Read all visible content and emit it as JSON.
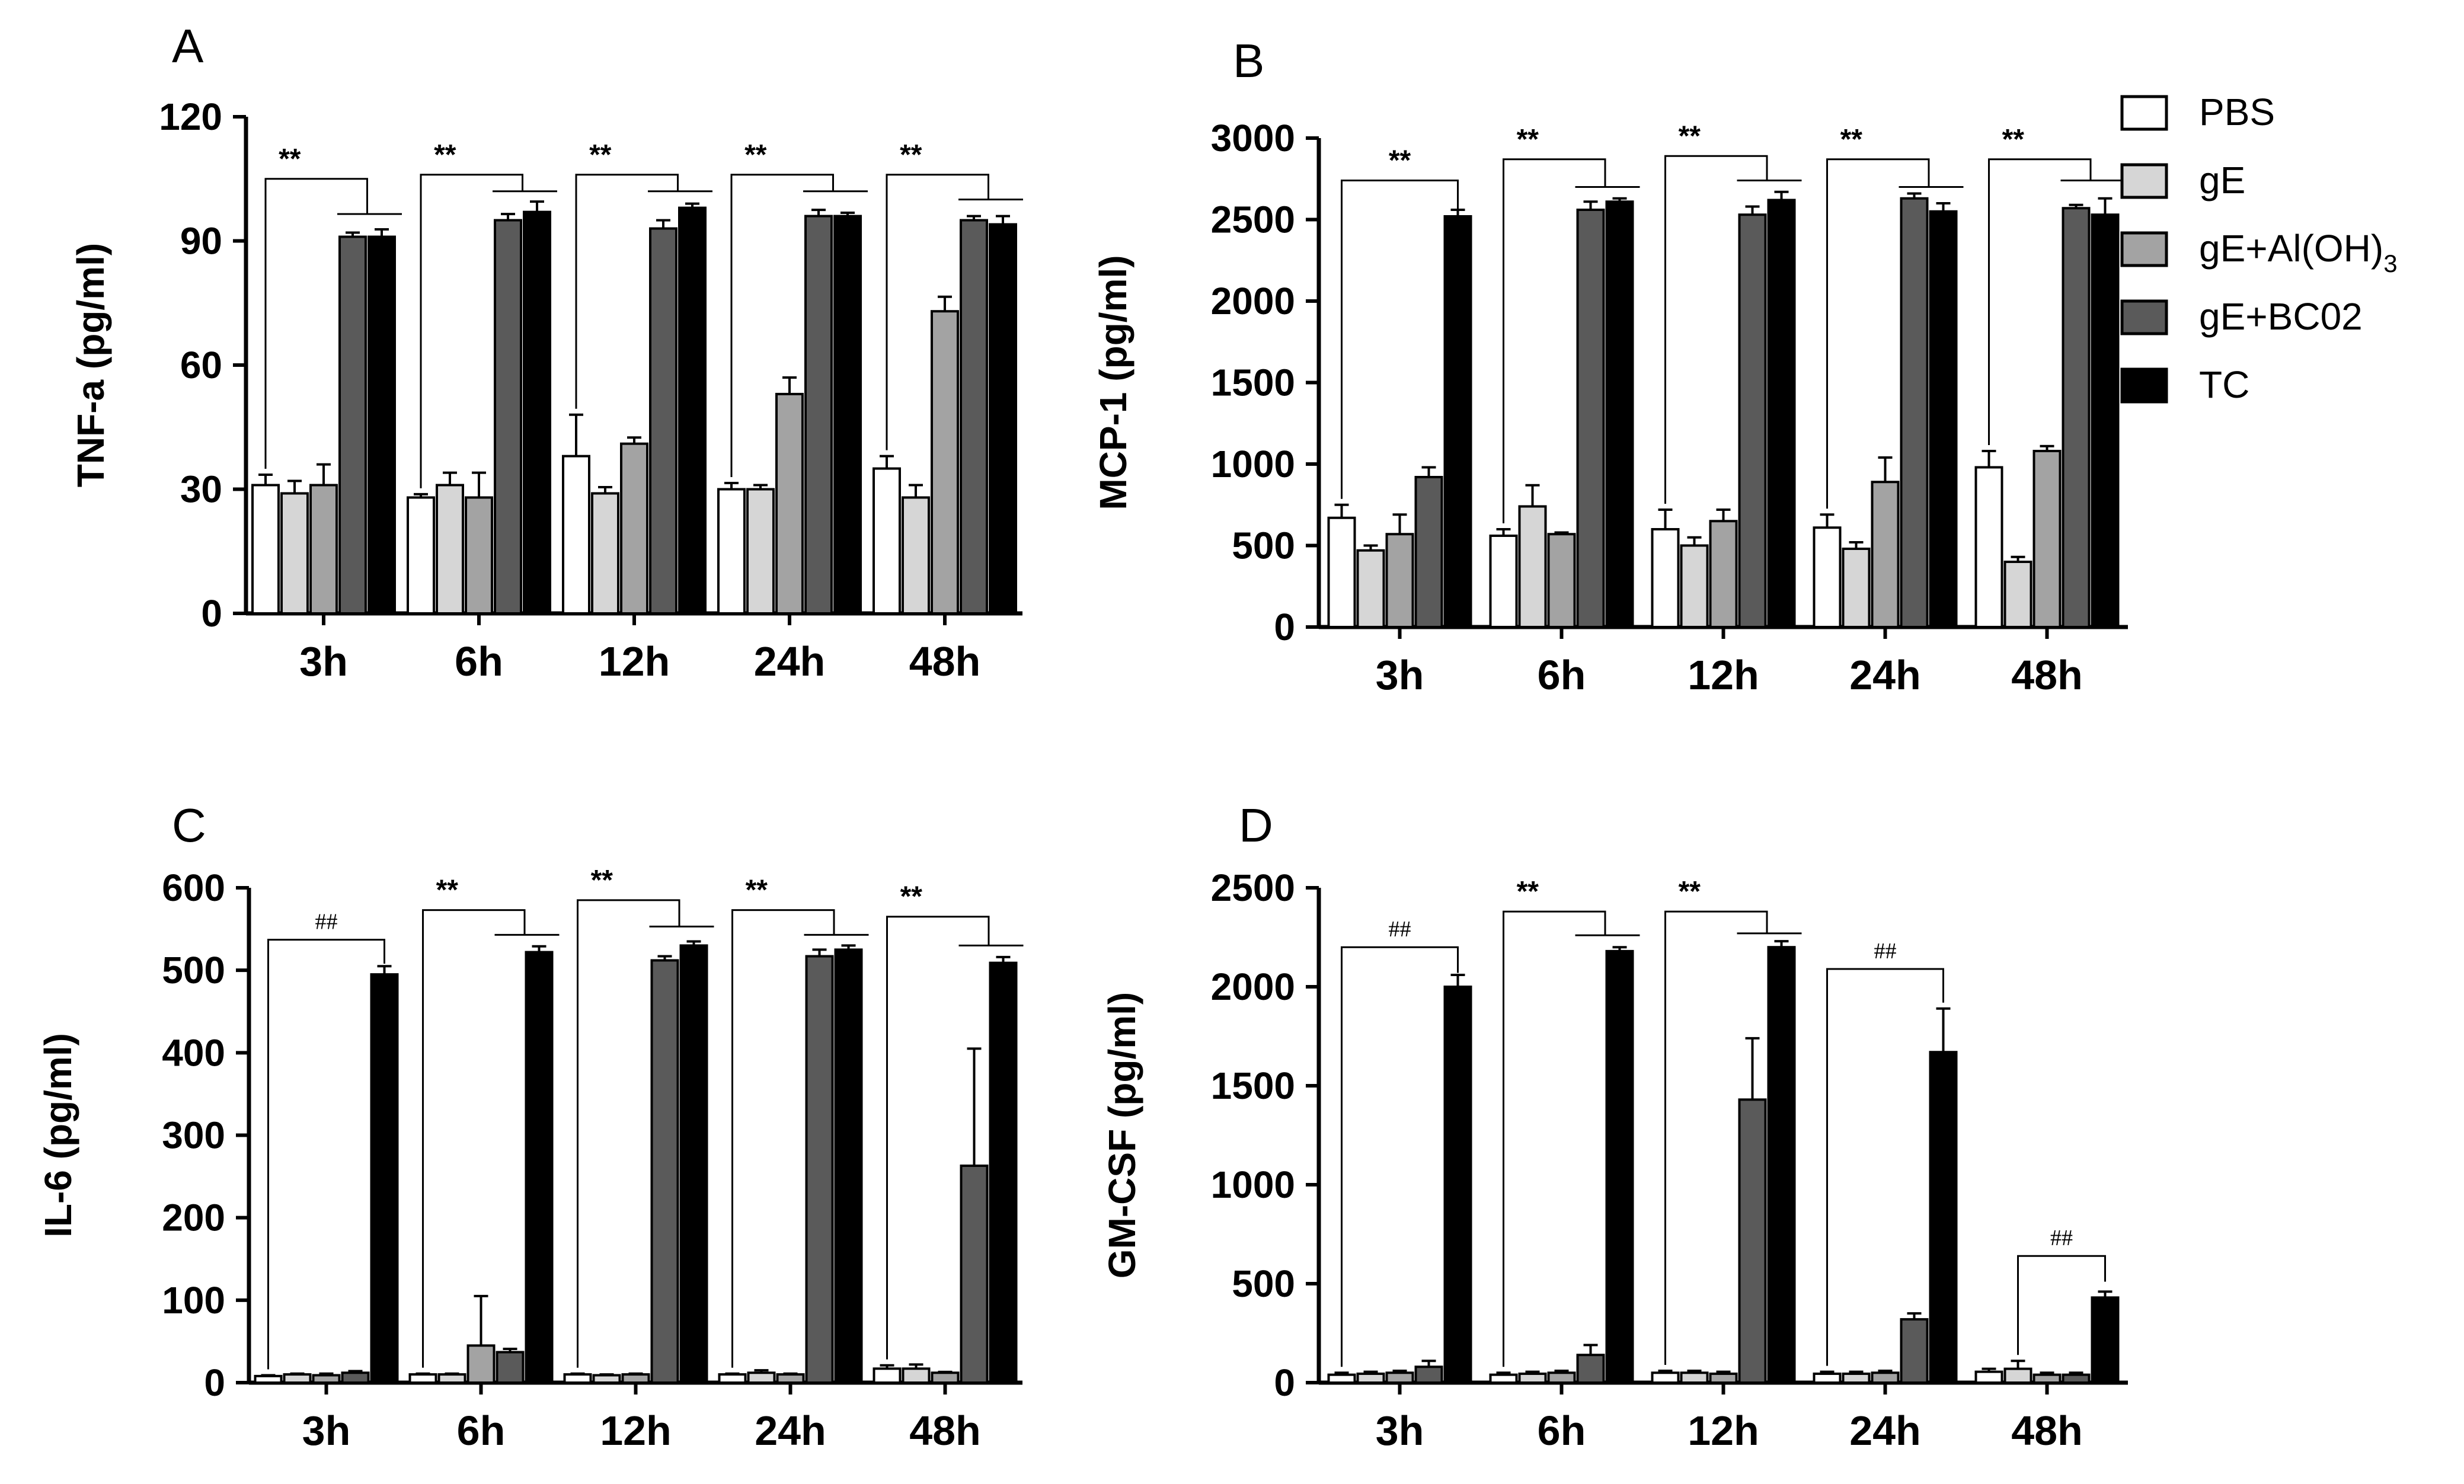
{
  "legend": {
    "items": [
      {
        "key": "PBS",
        "label": "PBS",
        "color": "#ffffff"
      },
      {
        "key": "gE",
        "label": "gE",
        "color": "#d6d6d6"
      },
      {
        "key": "gE_AlOH3",
        "label": "gE+Al(OH)",
        "sub": "3",
        "color": "#a3a3a3"
      },
      {
        "key": "gE_BC02",
        "label": "gE+BC02",
        "color": "#5a5a5a"
      },
      {
        "key": "TC",
        "label": "TC",
        "color": "#000000"
      }
    ]
  },
  "chart_data": [
    {
      "id": "A",
      "letter": "A",
      "type": "bar",
      "ylabel": "TNF-a (pg/ml)",
      "ylim": [
        0,
        120
      ],
      "yticks": [
        0,
        30,
        60,
        90,
        120
      ],
      "yticklabels": [
        "0",
        "30",
        "60",
        "90",
        "120"
      ],
      "categories": [
        "3h",
        "6h",
        "12h",
        "24h",
        "48h"
      ],
      "series": [
        {
          "name": "PBS",
          "values": [
            31,
            28,
            38,
            30,
            35
          ],
          "errors": [
            2.5,
            0.8,
            10,
            1.5,
            3
          ]
        },
        {
          "name": "gE",
          "values": [
            29,
            31,
            29,
            30,
            28
          ],
          "errors": [
            3,
            3,
            1.5,
            1,
            3
          ]
        },
        {
          "name": "gE+Al(OH)3",
          "values": [
            31,
            28,
            41,
            53,
            73
          ],
          "errors": [
            5,
            6,
            1.5,
            4,
            3.5
          ]
        },
        {
          "name": "gE+BC02",
          "values": [
            91,
            95,
            93,
            96,
            95
          ],
          "errors": [
            1,
            1.5,
            2,
            1.5,
            1
          ]
        },
        {
          "name": "TC",
          "values": [
            91,
            97,
            98,
            96,
            94
          ],
          "errors": [
            1.8,
            2.5,
            1,
            0.8,
            2
          ]
        }
      ],
      "annotations": [
        {
          "label": "**",
          "category": 0,
          "bar_from": 0,
          "bar_to": 3,
          "pair": [
            3,
            4
          ],
          "y_left": 105,
          "y_right": 96.5
        },
        {
          "label": "**",
          "category": 1,
          "bar_from": 0,
          "bar_to": 3,
          "pair": [
            3,
            4
          ],
          "y_left": 106,
          "y_right": 102
        },
        {
          "label": "**",
          "category": 2,
          "bar_from": 0,
          "bar_to": 3,
          "pair": [
            3,
            4
          ],
          "y_left": 106,
          "y_right": 102
        },
        {
          "label": "**",
          "category": 3,
          "bar_from": 0,
          "bar_to": 3,
          "pair": [
            3,
            4
          ],
          "y_left": 106,
          "y_right": 102
        },
        {
          "label": "**",
          "category": 4,
          "bar_from": 0,
          "bar_to": 3,
          "pair": [
            3,
            4
          ],
          "y_left": 106,
          "y_right": 100
        }
      ]
    },
    {
      "id": "B",
      "letter": "B",
      "type": "bar",
      "ylabel": "MCP-1 (pg/ml)",
      "ylim": [
        0,
        3000
      ],
      "yticks": [
        0,
        500,
        1000,
        1500,
        2000,
        2500,
        3000
      ],
      "yticklabels": [
        "0",
        "500",
        "1000",
        "1500",
        "2000",
        "2500",
        "3000"
      ],
      "categories": [
        "3h",
        "6h",
        "12h",
        "24h",
        "48h"
      ],
      "series": [
        {
          "name": "PBS",
          "values": [
            670,
            560,
            600,
            610,
            980
          ],
          "errors": [
            80,
            40,
            120,
            80,
            100
          ]
        },
        {
          "name": "gE",
          "values": [
            470,
            740,
            500,
            480,
            400
          ],
          "errors": [
            30,
            130,
            50,
            40,
            30
          ]
        },
        {
          "name": "gE+Al(OH)3",
          "values": [
            570,
            570,
            650,
            890,
            1080
          ],
          "errors": [
            120,
            10,
            70,
            150,
            30
          ]
        },
        {
          "name": "gE+BC02",
          "values": [
            920,
            2560,
            2530,
            2630,
            2570
          ],
          "errors": [
            60,
            50,
            50,
            30,
            20
          ]
        },
        {
          "name": "TC",
          "values": [
            2520,
            2610,
            2620,
            2550,
            2530
          ],
          "errors": [
            40,
            20,
            50,
            50,
            100
          ]
        }
      ],
      "annotations": [
        {
          "label": "**",
          "category": 0,
          "bar_from": 0,
          "bar_to": 4,
          "pair": null,
          "y_left": 2740,
          "y_right": 2560
        },
        {
          "label": "**",
          "category": 1,
          "bar_from": 0,
          "bar_to": 3,
          "pair": [
            3,
            4
          ],
          "y_left": 2870,
          "y_right": 2700
        },
        {
          "label": "**",
          "category": 2,
          "bar_from": 0,
          "bar_to": 3,
          "pair": [
            3,
            4
          ],
          "y_left": 2890,
          "y_right": 2740
        },
        {
          "label": "**",
          "category": 3,
          "bar_from": 0,
          "bar_to": 3,
          "pair": [
            3,
            4
          ],
          "y_left": 2870,
          "y_right": 2700
        },
        {
          "label": "**",
          "category": 4,
          "bar_from": 0,
          "bar_to": 3,
          "pair": [
            3,
            4
          ],
          "y_left": 2870,
          "y_right": 2740
        }
      ]
    },
    {
      "id": "C",
      "letter": "C",
      "type": "bar",
      "ylabel": "IL-6 (pg/ml)",
      "ylim": [
        0,
        600
      ],
      "yticks": [
        0,
        100,
        200,
        300,
        400,
        500,
        600
      ],
      "yticklabels": [
        "0",
        "100",
        "200",
        "300",
        "400",
        "500",
        "600"
      ],
      "categories": [
        "3h",
        "6h",
        "12h",
        "24h",
        "48h"
      ],
      "series": [
        {
          "name": "PBS",
          "values": [
            8,
            10,
            10,
            10,
            17
          ],
          "errors": [
            1,
            1,
            1,
            1,
            4
          ]
        },
        {
          "name": "gE",
          "values": [
            10,
            10,
            9,
            12,
            17
          ],
          "errors": [
            1,
            1,
            1,
            3,
            5
          ]
        },
        {
          "name": "gE+Al(OH)3",
          "values": [
            9,
            45,
            10,
            10,
            12
          ],
          "errors": [
            2,
            60,
            1,
            1,
            1
          ]
        },
        {
          "name": "gE+BC02",
          "values": [
            12,
            37,
            512,
            517,
            263
          ],
          "errors": [
            2,
            4,
            5,
            8,
            142
          ]
        },
        {
          "name": "TC",
          "values": [
            495,
            522,
            530,
            525,
            509
          ],
          "errors": [
            10,
            7,
            5,
            5,
            7
          ]
        }
      ],
      "annotations": [
        {
          "label": "##",
          "category": 0,
          "bar_from": 0,
          "bar_to": 4,
          "pair": null,
          "y_left": 537,
          "y_right": 508
        },
        {
          "label": "**",
          "category": 1,
          "bar_from": 0,
          "bar_to": 3,
          "pair": [
            3,
            4
          ],
          "y_left": 573,
          "y_right": 543
        },
        {
          "label": "**",
          "category": 2,
          "bar_from": 0,
          "bar_to": 3,
          "pair": [
            3,
            4
          ],
          "y_left": 585,
          "y_right": 553
        },
        {
          "label": "**",
          "category": 3,
          "bar_from": 0,
          "bar_to": 3,
          "pair": [
            3,
            4
          ],
          "y_left": 573,
          "y_right": 543
        },
        {
          "label": "**",
          "category": 4,
          "bar_from": 0,
          "bar_to": 3,
          "pair": [
            3,
            4
          ],
          "y_left": 565,
          "y_right": 530
        }
      ]
    },
    {
      "id": "D",
      "letter": "D",
      "type": "bar",
      "ylabel": "GM-CSF (pg/ml)",
      "ylim": [
        0,
        2500
      ],
      "yticks": [
        0,
        500,
        1000,
        1500,
        2000,
        2500
      ],
      "yticklabels": [
        "0",
        "500",
        "1000",
        "1500",
        "2000",
        "2500"
      ],
      "categories": [
        "3h",
        "6h",
        "12h",
        "24h",
        "48h"
      ],
      "series": [
        {
          "name": "PBS",
          "values": [
            40,
            40,
            50,
            45,
            55
          ],
          "errors": [
            10,
            10,
            10,
            10,
            15
          ]
        },
        {
          "name": "gE",
          "values": [
            45,
            45,
            50,
            45,
            70
          ],
          "errors": [
            10,
            10,
            10,
            10,
            40
          ]
        },
        {
          "name": "gE+Al(OH)3",
          "values": [
            50,
            50,
            45,
            50,
            40
          ],
          "errors": [
            10,
            10,
            10,
            10,
            10
          ]
        },
        {
          "name": "gE+BC02",
          "values": [
            80,
            140,
            1430,
            320,
            40
          ],
          "errors": [
            30,
            50,
            310,
            30,
            10
          ]
        },
        {
          "name": "TC",
          "values": [
            2000,
            2180,
            2200,
            1670,
            430
          ],
          "errors": [
            60,
            20,
            30,
            220,
            30
          ]
        }
      ],
      "annotations": [
        {
          "label": "##",
          "category": 0,
          "bar_from": 0,
          "bar_to": 4,
          "pair": null,
          "y_left": 2200,
          "y_right": 2070
        },
        {
          "label": "**",
          "category": 1,
          "bar_from": 0,
          "bar_to": 3,
          "pair": [
            3,
            4
          ],
          "y_left": 2380,
          "y_right": 2260
        },
        {
          "label": "**",
          "category": 2,
          "bar_from": 0,
          "bar_to": 3,
          "pair": [
            3,
            4
          ],
          "y_left": 2380,
          "y_right": 2270
        },
        {
          "label": "##",
          "category": 3,
          "bar_from": 0,
          "bar_to": 4,
          "pair": null,
          "y_left": 2090,
          "y_right": 1920
        },
        {
          "label": "##",
          "category": 4,
          "bar_from": 1,
          "bar_to": 4,
          "pair": null,
          "y_left": 640,
          "y_right": 510
        }
      ]
    }
  ]
}
